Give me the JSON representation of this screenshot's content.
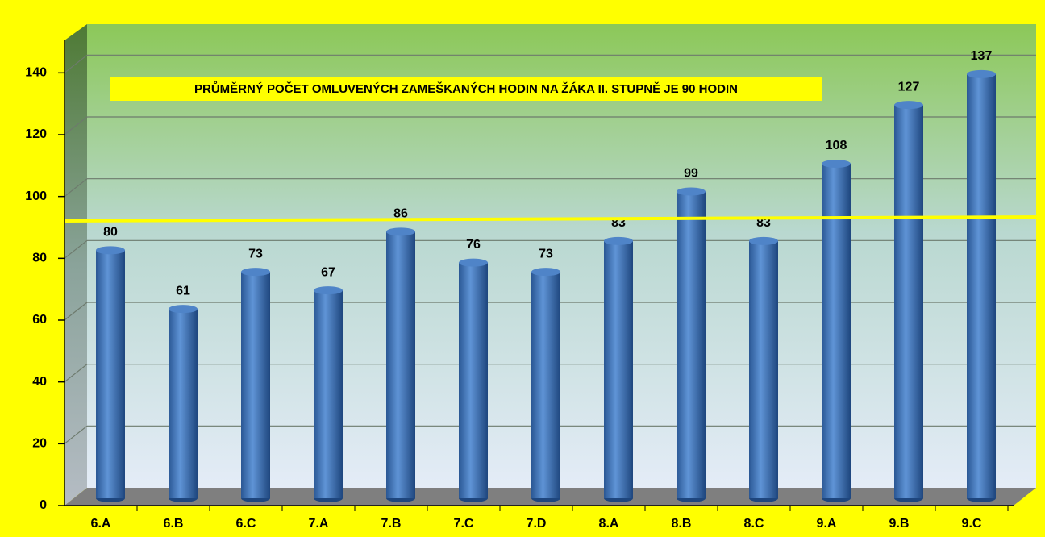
{
  "chart_data": {
    "type": "bar",
    "annotation": "PRŮMĚRNÝ POČET OMLUVENÝCH ZAMEŠKANÝCH HODIN NA ŽÁKA  II. STUPNĚ JE 90 HODIN",
    "average": 90,
    "categories": [
      "6.A",
      "6.B",
      "6.C",
      "7.A",
      "7.B",
      "7.C",
      "7.D",
      "8.A",
      "8.B",
      "8.C",
      "9.A",
      "9.B",
      "9.C"
    ],
    "values": [
      80,
      61,
      73,
      67,
      86,
      76,
      73,
      83,
      99,
      83,
      108,
      127,
      137
    ],
    "color": "#3f73b8",
    "average_color": "#ffff00",
    "ylim": [
      0,
      150
    ],
    "yticks": [
      0,
      20,
      40,
      60,
      80,
      100,
      120,
      140
    ],
    "grid": true
  }
}
